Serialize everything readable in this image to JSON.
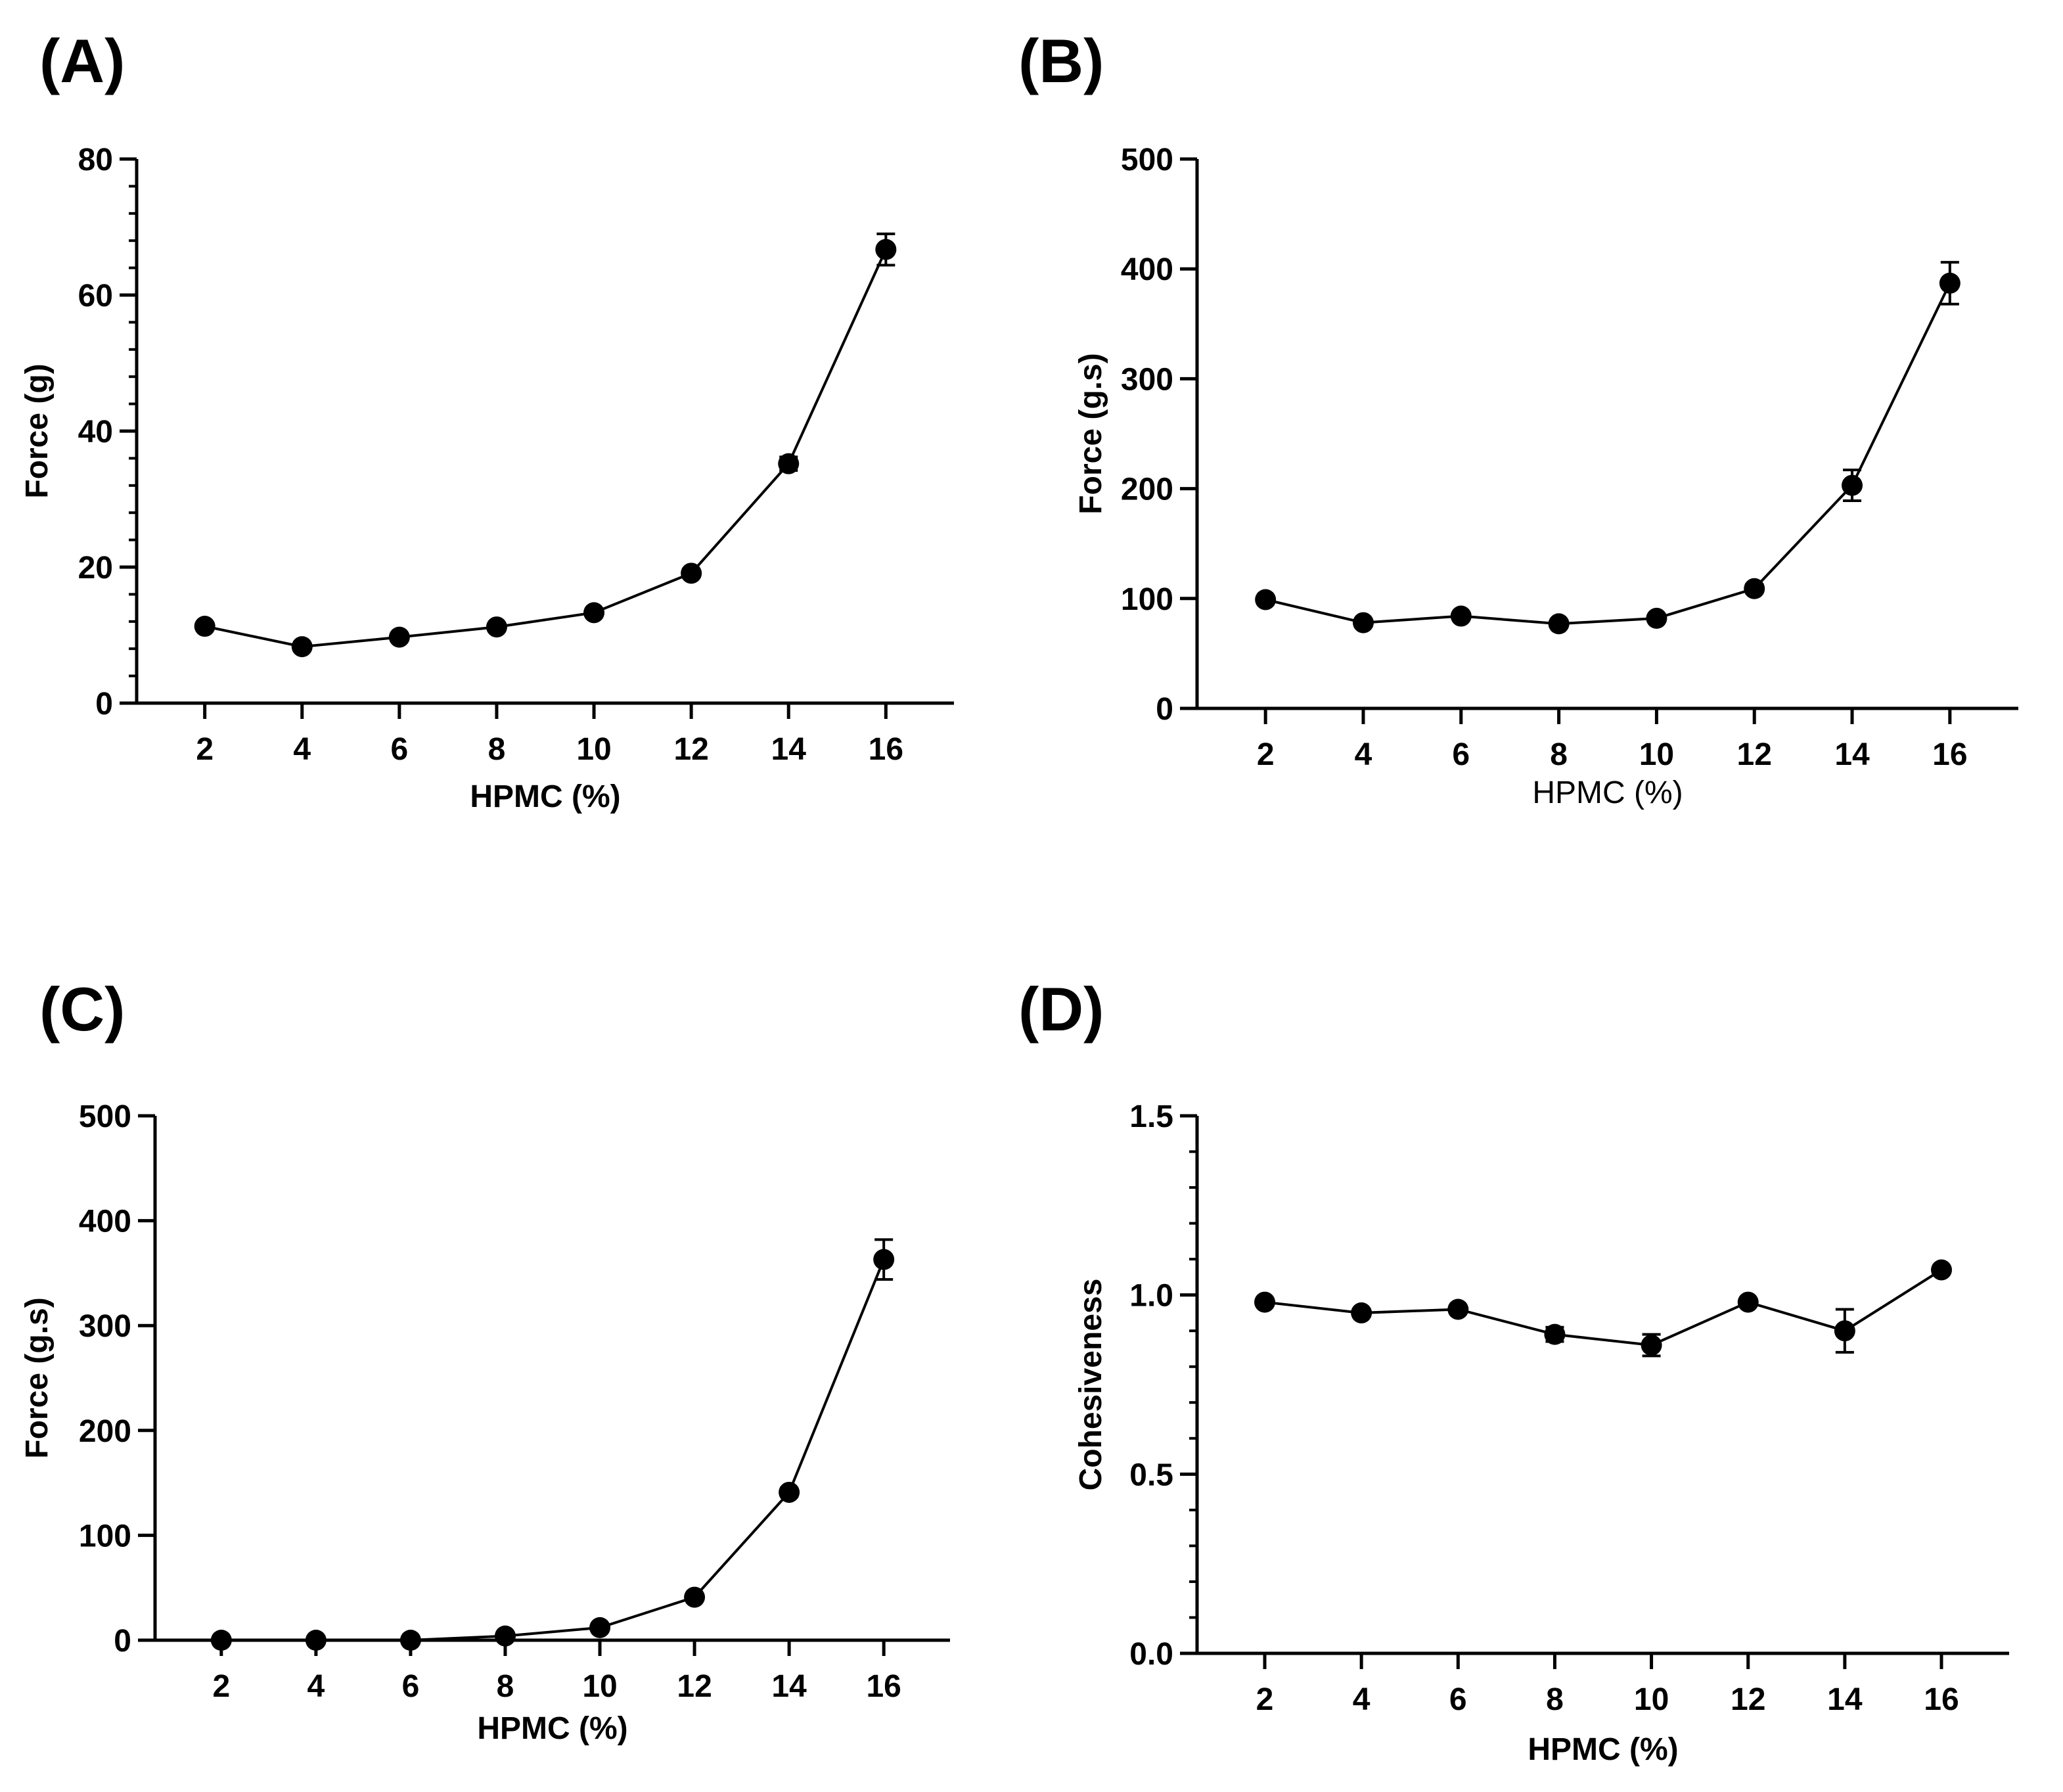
{
  "chart_data": [
    {
      "id": "A",
      "panel_label": "(A)",
      "type": "line",
      "title": "",
      "xlabel": "HPMC (%)",
      "xlabel_weight": "bold",
      "ylabel": "Force (g)",
      "x": [
        2,
        4,
        6,
        8,
        10,
        12,
        14,
        16
      ],
      "xticks": [
        2,
        4,
        6,
        8,
        10,
        12,
        14,
        16
      ],
      "xlim": [
        0.6,
        17.4
      ],
      "ylim": [
        0,
        80
      ],
      "yticks": [
        0,
        20,
        40,
        60,
        80
      ],
      "minor_ticks": 4,
      "series": [
        {
          "name": "Force",
          "values": [
            11.3,
            8.3,
            9.7,
            11.2,
            13.3,
            19.1,
            35.2,
            66.7
          ],
          "errors": [
            0.4,
            0.3,
            0.3,
            0.4,
            0.5,
            0.6,
            1.0,
            2.3
          ]
        }
      ]
    },
    {
      "id": "B",
      "panel_label": "(B)",
      "type": "line",
      "title": "",
      "xlabel": "HPMC (%)",
      "xlabel_weight": "normal",
      "ylabel": "Force (g.s)",
      "x": [
        2,
        4,
        6,
        8,
        10,
        12,
        14,
        16
      ],
      "xticks": [
        2,
        4,
        6,
        8,
        10,
        12,
        14,
        16
      ],
      "xlim": [
        0.6,
        17.4
      ],
      "ylim": [
        0,
        500
      ],
      "yticks": [
        0,
        100,
        200,
        300,
        400,
        500
      ],
      "minor_ticks": 0,
      "series": [
        {
          "name": "Force",
          "values": [
            99,
            78,
            84,
            77,
            82,
            109,
            203,
            387
          ],
          "errors": [
            3,
            3,
            3,
            3,
            3,
            4,
            14,
            19
          ]
        }
      ]
    },
    {
      "id": "C",
      "panel_label": "(C)",
      "type": "line",
      "title": "",
      "xlabel": "HPMC (%)",
      "xlabel_weight": "bold",
      "ylabel": "Force (g.s)",
      "x": [
        2,
        4,
        6,
        8,
        10,
        12,
        14,
        16
      ],
      "xticks": [
        2,
        4,
        6,
        8,
        10,
        12,
        14,
        16
      ],
      "xlim": [
        0.6,
        17.4
      ],
      "ylim": [
        0,
        500
      ],
      "yticks": [
        0,
        100,
        200,
        300,
        400,
        500
      ],
      "minor_ticks": 0,
      "series": [
        {
          "name": "Force",
          "values": [
            0,
            0,
            0,
            4,
            12,
            41,
            141,
            363
          ],
          "errors": [
            0,
            0,
            0,
            1,
            2,
            3,
            4,
            19
          ]
        }
      ]
    },
    {
      "id": "D",
      "panel_label": "(D)",
      "type": "line",
      "title": "",
      "xlabel": "HPMC (%)",
      "xlabel_weight": "bold",
      "ylabel": "Cohesiveness",
      "x": [
        2,
        4,
        6,
        8,
        10,
        12,
        14,
        16
      ],
      "xticks": [
        2,
        4,
        6,
        8,
        10,
        12,
        14,
        16
      ],
      "xlim": [
        0.6,
        17.4
      ],
      "ylim": [
        0,
        1.5
      ],
      "yticks": [
        0.0,
        0.5,
        1.0,
        1.5
      ],
      "ytick_labels": [
        "0.0",
        "0.5",
        "1.0",
        "1.5"
      ],
      "minor_ticks": 4,
      "series": [
        {
          "name": "Cohesiveness",
          "values": [
            0.98,
            0.95,
            0.96,
            0.89,
            0.86,
            0.98,
            0.9,
            1.07
          ],
          "errors": [
            0.01,
            0.01,
            0.01,
            0.02,
            0.03,
            0.01,
            0.06,
            0.01
          ]
        }
      ]
    }
  ]
}
